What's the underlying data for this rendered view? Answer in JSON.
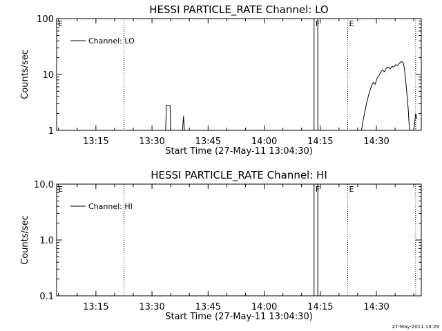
{
  "timestamp": "27-May-2011 13:29",
  "chart_data": [
    {
      "type": "line",
      "title": "HESSI PARTICLE_RATE Channel: LO",
      "xlabel": "Start Time (27-May-11 13:04:30)",
      "ylabel": "Counts/sec",
      "yscale": "log",
      "ylim": [
        1,
        100
      ],
      "xlim": [
        "13:04:30",
        "14:42:00"
      ],
      "x_ticks": [
        "13:15",
        "13:30",
        "13:45",
        "14:00",
        "14:15",
        "14:30"
      ],
      "y_ticks": [
        "1",
        "10",
        "100"
      ],
      "grid": false,
      "legend": {
        "position": "top-left",
        "entries": [
          "Channel: LO"
        ]
      },
      "markers": [
        {
          "label": "E",
          "time": "13:04:30",
          "style": "none"
        },
        {
          "label": "",
          "time": "13:22:30",
          "style": "dotted"
        },
        {
          "label": "F",
          "time": "14:13:20",
          "style": "solid"
        },
        {
          "label": "",
          "time": "14:14:20",
          "style": "solid"
        },
        {
          "label": "E",
          "time": "14:22:20",
          "style": "dotted"
        },
        {
          "label": "",
          "time": "14:40:30",
          "style": "dotted"
        }
      ],
      "series": [
        {
          "name": "Channel: LO",
          "segments": [
            [
              [
                "13:33:40",
                1
              ],
              [
                "13:33:50",
                2.8
              ],
              [
                "13:34:50",
                2.8
              ],
              [
                "13:35:00",
                1
              ]
            ],
            [
              [
                "13:38:10",
                1
              ],
              [
                "13:38:25",
                1.8
              ],
              [
                "13:38:40",
                1
              ]
            ],
            [
              [
                "14:26:00",
                1
              ],
              [
                "14:26:40",
                1.8
              ],
              [
                "14:27:20",
                3
              ],
              [
                "14:28:00",
                4.5
              ],
              [
                "14:28:40",
                6.2
              ],
              [
                "14:29:10",
                7.2
              ],
              [
                "14:29:40",
                6.7
              ],
              [
                "14:30:10",
                8.5
              ],
              [
                "14:30:40",
                9.5
              ],
              [
                "14:31:10",
                11
              ],
              [
                "14:31:40",
                12
              ],
              [
                "14:32:10",
                11.2
              ],
              [
                "14:32:40",
                13
              ],
              [
                "14:33:10",
                13.5
              ],
              [
                "14:33:40",
                12.6
              ],
              [
                "14:34:10",
                14
              ],
              [
                "14:34:40",
                13.5
              ],
              [
                "14:35:10",
                15
              ],
              [
                "14:35:40",
                14.5
              ],
              [
                "14:36:10",
                16
              ],
              [
                "14:36:40",
                17
              ],
              [
                "14:37:10",
                16.2
              ],
              [
                "14:37:30",
                13
              ],
              [
                "14:38:00",
                6
              ],
              [
                "14:38:30",
                2.5
              ],
              [
                "14:38:50",
                1
              ]
            ],
            [
              [
                "14:40:00",
                1
              ],
              [
                "14:40:30",
                2
              ],
              [
                "14:40:50",
                1.6
              ]
            ]
          ]
        }
      ]
    },
    {
      "type": "line",
      "title": "HESSI PARTICLE_RATE Channel: HI",
      "xlabel": "Start Time (27-May-11 13:04:30)",
      "ylabel": "Counts/sec",
      "yscale": "log",
      "ylim": [
        0.1,
        10
      ],
      "xlim": [
        "13:04:30",
        "14:42:00"
      ],
      "x_ticks": [
        "13:15",
        "13:30",
        "13:45",
        "14:00",
        "14:15",
        "14:30"
      ],
      "y_ticks": [
        "0.1",
        "1.0",
        "10.0"
      ],
      "grid": false,
      "legend": {
        "position": "top-left",
        "entries": [
          "Channel: HI"
        ]
      },
      "markers": [
        {
          "label": "E",
          "time": "13:04:30",
          "style": "none"
        },
        {
          "label": "",
          "time": "13:22:30",
          "style": "dotted"
        },
        {
          "label": "F",
          "time": "14:13:20",
          "style": "solid"
        },
        {
          "label": "",
          "time": "14:14:20",
          "style": "solid"
        },
        {
          "label": "E",
          "time": "14:22:20",
          "style": "dotted"
        },
        {
          "label": "",
          "time": "14:40:30",
          "style": "dotted"
        }
      ],
      "series": [
        {
          "name": "Channel: HI",
          "segments": []
        }
      ]
    }
  ]
}
